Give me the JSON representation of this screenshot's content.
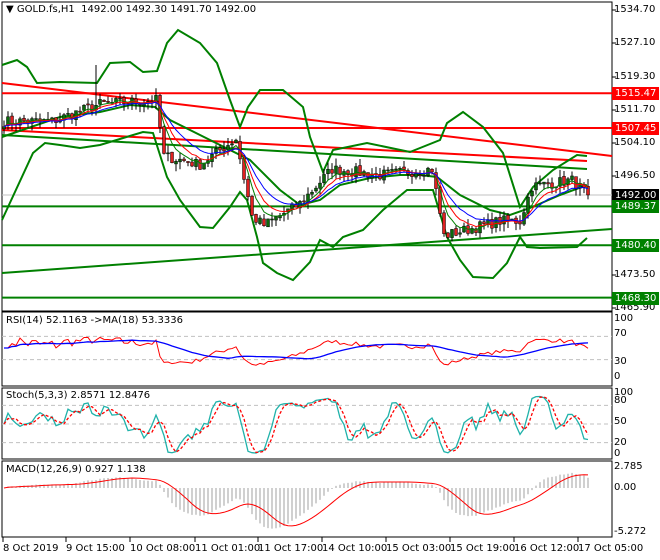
{
  "header": {
    "symbol": "GOLD.fs,H1",
    "open": "1492.00",
    "high": "1492.30",
    "low": "1491.70",
    "close": "1492.00"
  },
  "price_axis": [
    "1534.70",
    "1527.10",
    "1519.30",
    "1511.70",
    "1504.10",
    "1496.50",
    "1473.50",
    "1465.90"
  ],
  "price_tags": [
    {
      "text": "1515.47",
      "price": 1515.47,
      "color": "#ff0000"
    },
    {
      "text": "1507.45",
      "price": 1507.45,
      "color": "#ff0000"
    },
    {
      "text": "1492.00",
      "price": 1492.0,
      "color": "#000000"
    },
    {
      "text": "1489.37",
      "price": 1489.37,
      "color": "#008000"
    },
    {
      "text": "1480.40",
      "price": 1480.4,
      "color": "#008000"
    },
    {
      "text": "1468.30",
      "price": 1468.3,
      "color": "#008000"
    }
  ],
  "rsi": {
    "label": "RSI(14) 52.1163  ->MA(18) 53.3336",
    "levels": [
      "100",
      "70",
      "30",
      "0"
    ]
  },
  "stoch": {
    "label": "Stoch(5,3,3) 2.8571 12.8476",
    "levels": [
      "100",
      "80",
      "50",
      "20",
      "0"
    ]
  },
  "macd": {
    "label": "MACD(12,26,9) 0.927 1.138",
    "levels": [
      "2.785",
      "0.00",
      "-5.272"
    ]
  },
  "time_axis": [
    "8 Oct 2019",
    "9 Oct 15:00",
    "10 Oct 08:00",
    "11 Oct 01:00",
    "11 Oct 17:00",
    "14 Oct 10:00",
    "15 Oct 03:00",
    "15 Oct 19:00",
    "16 Oct 12:00",
    "17 Oct 05:00"
  ],
  "colors": {
    "bull": "#0b6b0b",
    "bear": "#e02020",
    "support": "#008000",
    "resistance": "#ff0000",
    "ma_fast": "#0000ff",
    "ma_mid": "#ff0000",
    "ma_slow": "#008000",
    "stoch_main": "#20b2aa",
    "macd_hist": "#a0a0a0"
  },
  "chart_data": {
    "type": "candlestick",
    "timeframe": "H1",
    "ylim": [
      1465.9,
      1534.7
    ],
    "close_keypoints": [
      [
        0,
        1509
      ],
      [
        12,
        1509
      ],
      [
        24,
        1513
      ],
      [
        38,
        1513.9
      ],
      [
        40,
        1501
      ],
      [
        49,
        1499
      ],
      [
        58,
        1505
      ],
      [
        62,
        1487
      ],
      [
        65,
        1485
      ],
      [
        74,
        1490
      ],
      [
        82,
        1498
      ],
      [
        94,
        1496.6
      ],
      [
        107,
        1498
      ],
      [
        110,
        1482.6
      ],
      [
        124,
        1486
      ],
      [
        129,
        1486
      ],
      [
        132,
        1494
      ],
      [
        142,
        1495.4
      ],
      [
        146,
        1492
      ]
    ],
    "horizontal_levels": [
      1515.47,
      1507.45,
      1489.37,
      1480.4,
      1468.3
    ]
  }
}
